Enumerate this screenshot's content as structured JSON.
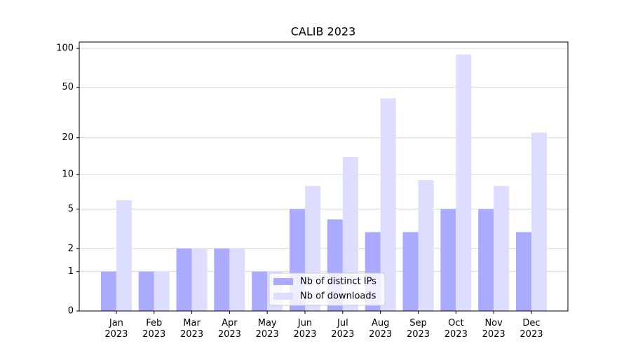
{
  "chart_data": {
    "type": "bar",
    "title": "CALIB 2023",
    "categories": [
      "Jan 2023",
      "Feb 2023",
      "Mar 2023",
      "Apr 2023",
      "May 2023",
      "Jun 2023",
      "Jul 2023",
      "Aug 2023",
      "Sep 2023",
      "Oct 2023",
      "Nov 2023",
      "Dec 2023"
    ],
    "series": [
      {
        "name": "Nb of distinct IPs",
        "color": "#aaaaff",
        "values": [
          1,
          1,
          2,
          2,
          1,
          5,
          4,
          3,
          3,
          5,
          5,
          3
        ]
      },
      {
        "name": "Nb of downloads",
        "color": "#ddddff",
        "values": [
          6,
          1,
          2,
          2,
          1,
          8,
          14,
          41,
          9,
          90,
          8,
          22
        ]
      }
    ],
    "yscale": "log1p",
    "ylim": [
      0,
      112
    ],
    "yticks": [
      0,
      1,
      2,
      5,
      10,
      20,
      50,
      100
    ],
    "grid": true,
    "legend": "lower center"
  }
}
